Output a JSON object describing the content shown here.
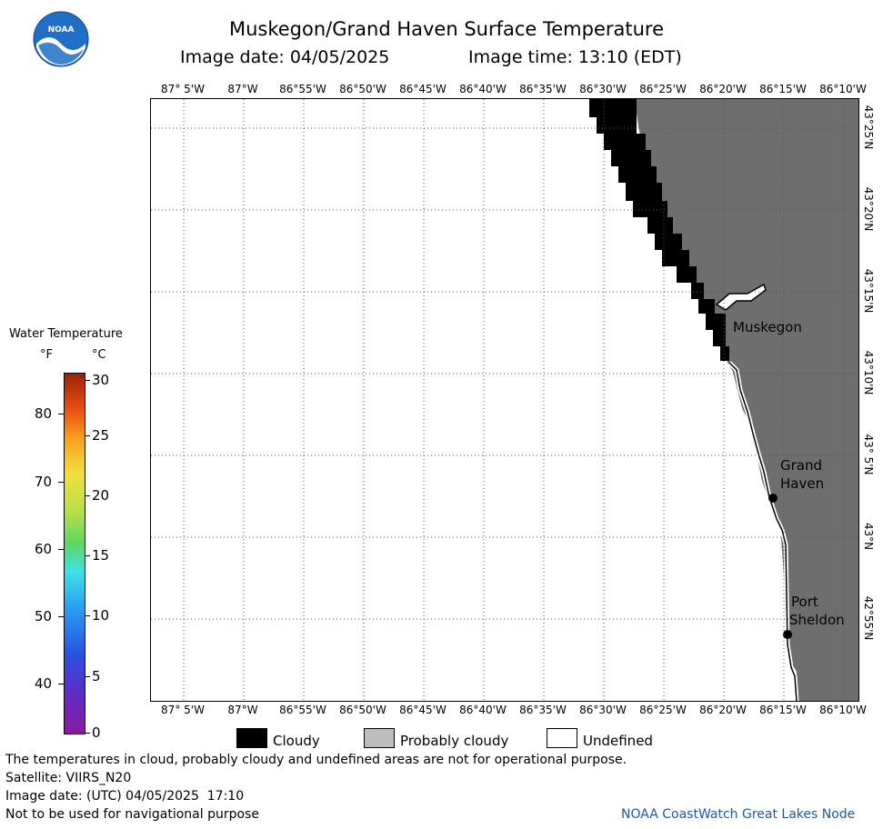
{
  "header": {
    "title": "Muskegon/Grand Haven Surface Temperature",
    "image_date_label": "Image date: 04/05/2025",
    "image_time_label": "Image time: 13:10 (EDT)",
    "logo_text": "NOAA"
  },
  "map": {
    "lon_ticks": [
      "87° 5'W",
      "87°W",
      "86°55'W",
      "86°50'W",
      "86°45'W",
      "86°40'W",
      "86°35'W",
      "86°30'W",
      "86°25'W",
      "86°20'W",
      "86°15'W",
      "86°10'W"
    ],
    "lat_ticks": [
      "43°25'N",
      "43°20'N",
      "43°15'N",
      "43°10'N",
      "43° 5'N",
      "43°N",
      "42°55'N"
    ],
    "places": {
      "muskegon": "Muskegon",
      "grand_haven_1": "Grand",
      "grand_haven_2": "Haven",
      "port_sheldon_1": "Port",
      "port_sheldon_2": "Sheldon"
    },
    "colors": {
      "land": "#6e6e6e",
      "cloud": "#000000",
      "water": "#ffffff"
    }
  },
  "legend": {
    "title": "Water Temperature",
    "unit_f": "°F",
    "unit_c": "°C",
    "f_ticks": [
      "80",
      "70",
      "60",
      "50",
      "40"
    ],
    "c_ticks": [
      "30",
      "25",
      "20",
      "15",
      "10",
      "5",
      "0"
    ]
  },
  "key": {
    "cloudy": "Cloudy",
    "probably_cloudy": "Probably cloudy",
    "undefined": "Undefined"
  },
  "footer": {
    "warning": "The temperatures in cloud, probably cloudy and undefined areas are not for operational purpose.",
    "satellite": "Satellite: VIIRS_N20",
    "utc_date": "Image date: (UTC) 04/05/2025  17:10",
    "nav_warning": "Not to be used for navigational purpose",
    "credit": "NOAA CoastWatch Great Lakes Node"
  }
}
